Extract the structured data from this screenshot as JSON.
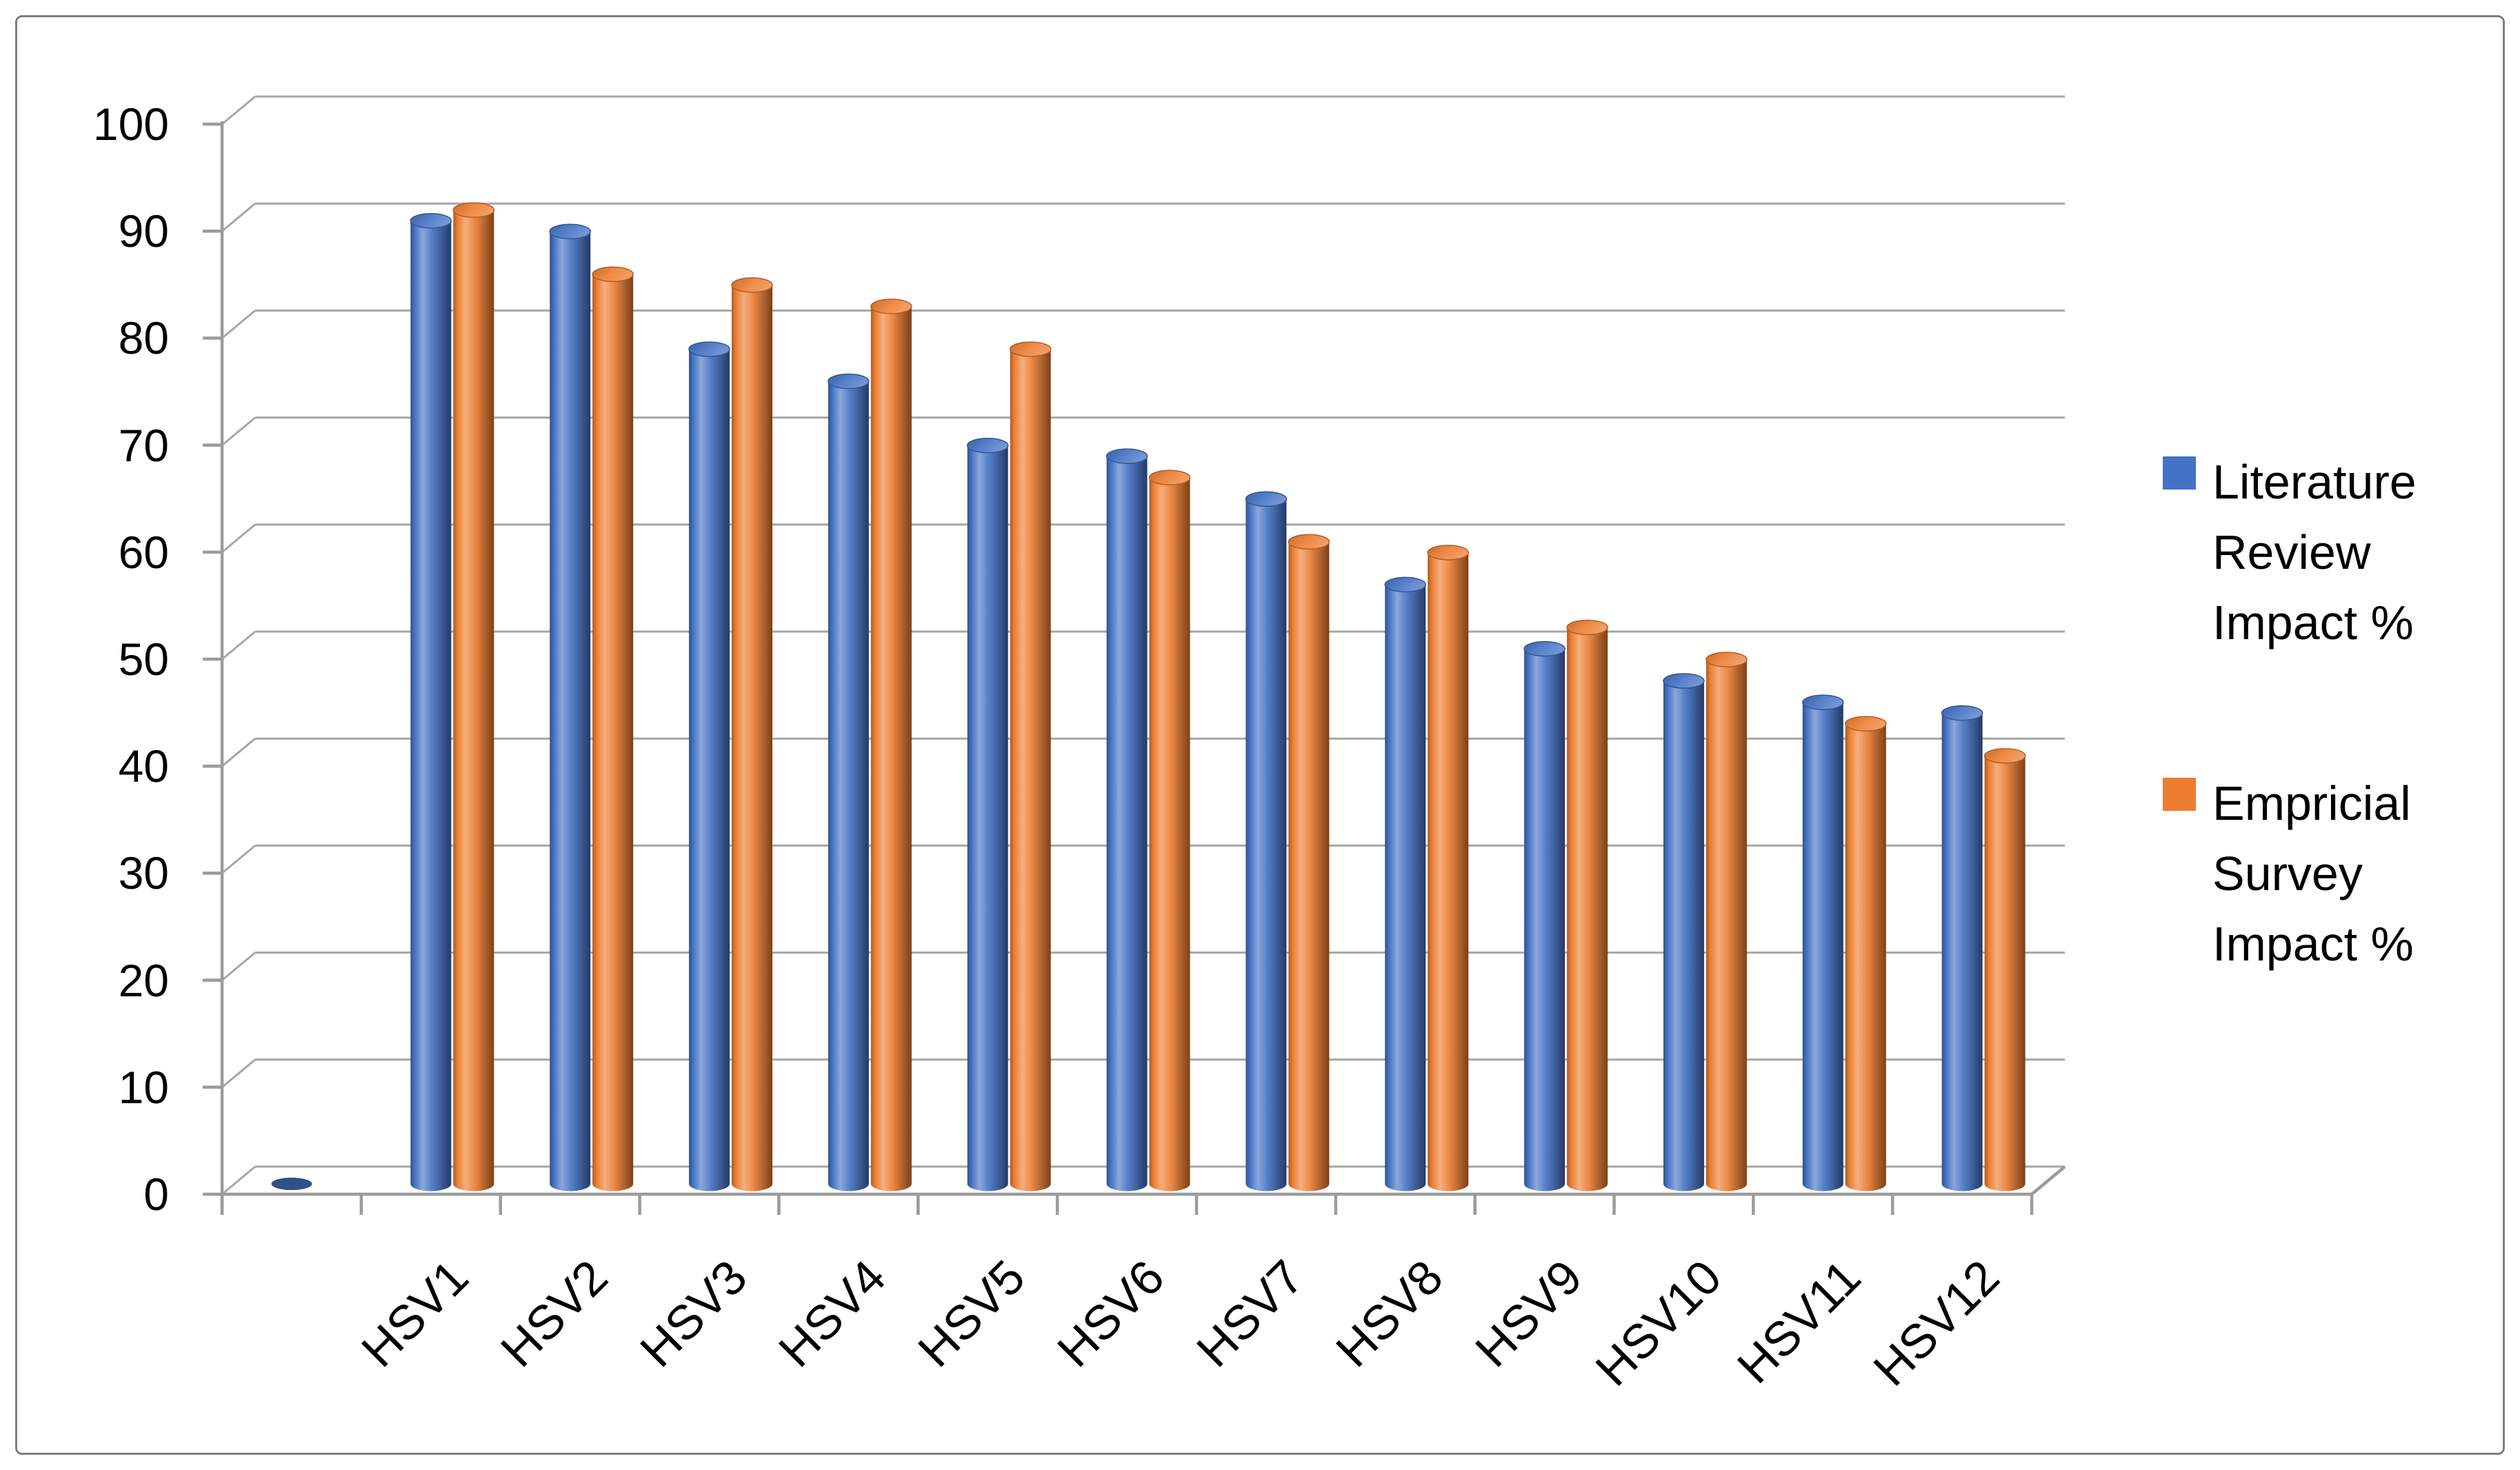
{
  "page": {
    "background": "#FFFFFF",
    "frame_border_color": "#7F7F7F"
  },
  "chart_data": {
    "type": "bar",
    "style": "3d-cylinder",
    "title": "",
    "categories": [
      "HSV1",
      "HSV2",
      "HSV3",
      "HSV4",
      "HSV5",
      "HSV6",
      "HSV7",
      "HSV8",
      "HSV9",
      "HSV10",
      "HSV11",
      "HSV12"
    ],
    "series": [
      {
        "name": "Literature Review Impact %",
        "color": "#4472C4",
        "values": [
          90,
          89,
          78,
          75,
          69,
          68,
          64,
          56,
          50,
          47,
          45,
          44
        ]
      },
      {
        "name": "Empricial Survey Impact %",
        "color": "#ED7D31",
        "values": [
          91,
          85,
          84,
          82,
          78,
          66,
          60,
          59,
          52,
          49,
          43,
          40
        ]
      }
    ],
    "ylim": [
      0,
      100
    ],
    "ytick_step": 10,
    "y_tick_labels": [
      "0",
      "10",
      "20",
      "30",
      "40",
      "50",
      "60",
      "70",
      "80",
      "90",
      "100"
    ],
    "xlabel": "",
    "ylabel": "",
    "grid": true,
    "legend_position": "right",
    "blank_leading_category": {
      "label": "",
      "literature_review_value": 0
    },
    "colors": {
      "gridline": "#A6A6A6",
      "axis": "#9B9B9B",
      "text": "#000000"
    }
  }
}
